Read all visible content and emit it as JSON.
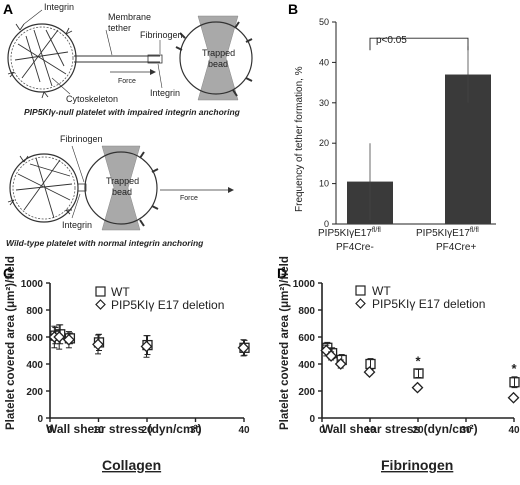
{
  "panel_a": {
    "letter": "A",
    "top": {
      "integrin_label": "Integrin",
      "membrane_tether_label": "Membrane\ntether",
      "fibrinogen_label": "Fibrinogen",
      "trapped_bead_label": "Trapped\nbead",
      "force_label": "Force",
      "integrin2_label": "Integrin",
      "cytoskeleton_label": "Cytoskeleton",
      "caption": "PIP5KIγ-null platelet with impaired integrin anchoring"
    },
    "bottom": {
      "fibrinogen_label": "Fibrinogen",
      "trapped_bead_label": "Trapped\nbead",
      "force_label": "Force",
      "integrin_label": "Integrin",
      "caption": "Wild-type platelet with normal integrin anchoring"
    }
  },
  "panel_b": {
    "letter": "B",
    "ylabel": "Frequency of tether formation, %",
    "significance": "p<0.05",
    "cat1_line1": "PIP5KIγE17",
    "cat1_sup": "fl/fl",
    "cat1_line2": "PF4Cre-",
    "cat2_line1": "PIP5KIγE17",
    "cat2_sup": "fl/fl",
    "cat2_line2": "PF4Cre+",
    "yticks": [
      "0",
      "10",
      "20",
      "30",
      "40",
      "50"
    ]
  },
  "panel_c": {
    "letter": "C",
    "ylabel": "Platelet covered area (μm²)/field",
    "xlabel": "Wall shear stress (dyn/cm²)",
    "legend_wt": "WT",
    "legend_del": "PIP5KIγ E17 deletion",
    "substrate": "Collagen",
    "yticks": [
      "0",
      "200",
      "400",
      "600",
      "800",
      "1000"
    ],
    "xticks": [
      "0",
      "10",
      "20",
      "30",
      "40"
    ]
  },
  "panel_d": {
    "letter": "D",
    "ylabel": "Platelet covered area (μm²)/field",
    "xlabel": "Wall shear stress (dyn/cm²)",
    "legend_wt": "WT",
    "legend_del": "PIP5KIγ E17 deletion",
    "substrate": "Fibrinogen",
    "star1": "*",
    "star2": "*",
    "yticks": [
      "0",
      "200",
      "400",
      "600",
      "800",
      "1000"
    ],
    "xticks": [
      "0",
      "10",
      "20",
      "30",
      "40"
    ]
  },
  "chart_data": [
    {
      "type": "bar",
      "categories": [
        "PIP5KIγE17 fl/fl PF4Cre-",
        "PIP5KIγE17 fl/fl PF4Cre+"
      ],
      "values": [
        10.5,
        37
      ],
      "errors": [
        9.5,
        7
      ],
      "ylim": [
        0,
        50
      ],
      "ylabel": "Frequency of tether formation, %",
      "annotations": [
        "p<0.05"
      ],
      "bar_color": "#3a3a3a"
    },
    {
      "type": "scatter",
      "title": "Collagen",
      "xlabel": "Wall shear stress (dyn/cm²)",
      "ylabel": "Platelet covered area (μm²)/field",
      "xlim": [
        0,
        40
      ],
      "ylim": [
        0,
        1000
      ],
      "series": [
        {
          "name": "WT",
          "marker": "square",
          "x": [
            1,
            2,
            4,
            10,
            20,
            40
          ],
          "y": [
            610,
            620,
            590,
            560,
            540,
            520
          ],
          "err": [
            60,
            70,
            40,
            60,
            70,
            55
          ]
        },
        {
          "name": "PIP5KIγ E17 deletion",
          "marker": "diamond",
          "x": [
            1,
            2,
            4,
            10,
            20,
            40
          ],
          "y": [
            600,
            600,
            580,
            545,
            530,
            520
          ],
          "err": [
            80,
            90,
            60,
            70,
            80,
            60
          ]
        }
      ]
    },
    {
      "type": "scatter",
      "title": "Fibrinogen",
      "xlabel": "Wall shear stress (dyn/cm²)",
      "ylabel": "Platelet covered area (μm²)/field",
      "xlim": [
        0,
        40
      ],
      "ylim": [
        0,
        1000
      ],
      "series": [
        {
          "name": "WT",
          "marker": "square",
          "x": [
            1,
            2,
            4,
            10,
            20,
            40
          ],
          "y": [
            520,
            480,
            430,
            400,
            330,
            265
          ],
          "err": [
            40,
            40,
            40,
            40,
            30,
            40
          ]
        },
        {
          "name": "PIP5KIγ E17 deletion",
          "marker": "diamond",
          "x": [
            1,
            2,
            4,
            10,
            20,
            40
          ],
          "y": [
            500,
            460,
            400,
            340,
            225,
            150
          ],
          "err": [
            40,
            30,
            30,
            20,
            20,
            15
          ]
        }
      ],
      "annotations": [
        {
          "x": 20,
          "text": "*"
        },
        {
          "x": 40,
          "text": "*"
        }
      ]
    }
  ]
}
